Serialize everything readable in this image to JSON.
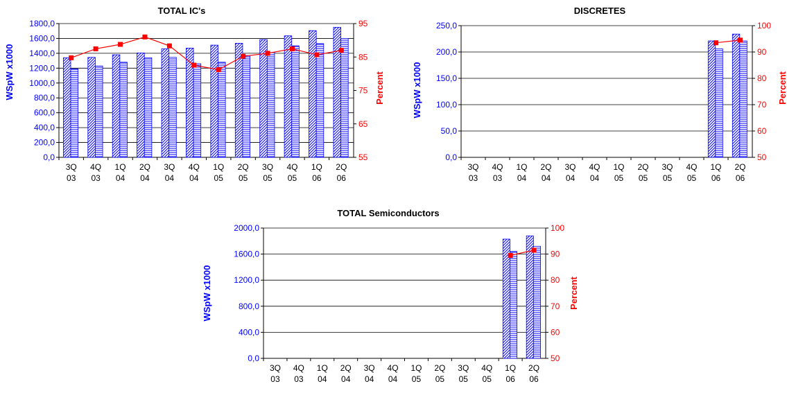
{
  "colors": {
    "bar_stroke": "#0000ff",
    "line": "#ff0000",
    "grid": "#000000"
  },
  "chart_data": [
    {
      "type": "bar",
      "title": "TOTAL IC's",
      "ylabel": "WSpW x1000",
      "y2label": "Percent",
      "categories": [
        [
          "3Q",
          "03"
        ],
        [
          "4Q",
          "03"
        ],
        [
          "1Q",
          "04"
        ],
        [
          "2Q",
          "04"
        ],
        [
          "3Q",
          "04"
        ],
        [
          "4Q",
          "04"
        ],
        [
          "1Q",
          "05"
        ],
        [
          "2Q",
          "05"
        ],
        [
          "3Q",
          "05"
        ],
        [
          "4Q",
          "05"
        ],
        [
          "1Q",
          "06"
        ],
        [
          "2Q",
          "06"
        ]
      ],
      "ylim": [
        0,
        1800
      ],
      "yticks": [
        "0,0",
        "200,0",
        "400,0",
        "600,0",
        "800,0",
        "1000,0",
        "1200,0",
        "1400,0",
        "1600,0",
        "1800,0"
      ],
      "y2lim": [
        55,
        100
      ],
      "y2ticks": [
        "55",
        "65",
        "75",
        "85",
        "95"
      ],
      "series": [
        {
          "values": [
            1340,
            1345,
            1380,
            1405,
            1460,
            1470,
            1510,
            1535,
            1585,
            1635,
            1705,
            1750
          ],
          "pattern": "diagonal"
        },
        {
          "values": [
            1190,
            1230,
            1280,
            1340,
            1345,
            1260,
            1280,
            1370,
            1410,
            1500,
            1530,
            1600
          ],
          "pattern": "horizontal"
        },
        {
          "values": [
            88.5,
            91.5,
            93,
            95.5,
            92.5,
            86,
            84.5,
            89,
            90,
            91.5,
            89.5,
            91
          ],
          "axis": "right",
          "type": "line"
        }
      ]
    },
    {
      "type": "bar",
      "title": "DISCRETES",
      "ylabel": "WSpW x1000",
      "y2label": "Percent",
      "categories": [
        [
          "3Q",
          "03"
        ],
        [
          "4Q",
          "03"
        ],
        [
          "1Q",
          "04"
        ],
        [
          "2Q",
          "04"
        ],
        [
          "3Q",
          "04"
        ],
        [
          "4Q",
          "04"
        ],
        [
          "1Q",
          "05"
        ],
        [
          "2Q",
          "05"
        ],
        [
          "3Q",
          "05"
        ],
        [
          "4Q",
          "05"
        ],
        [
          "1Q",
          "06"
        ],
        [
          "2Q",
          "06"
        ]
      ],
      "ylim": [
        0,
        250
      ],
      "yticks": [
        "0,0",
        "50,0",
        "100,0",
        "150,0",
        "200,0",
        "250,0"
      ],
      "y2lim": [
        50,
        100
      ],
      "y2ticks": [
        "50",
        "60",
        "70",
        "80",
        "90",
        "100"
      ],
      "series": [
        {
          "values": [
            null,
            null,
            null,
            null,
            null,
            null,
            null,
            null,
            null,
            null,
            221,
            234
          ],
          "pattern": "diagonal"
        },
        {
          "values": [
            null,
            null,
            null,
            null,
            null,
            null,
            null,
            null,
            null,
            null,
            206,
            221
          ],
          "pattern": "horizontal"
        },
        {
          "values": [
            null,
            null,
            null,
            null,
            null,
            null,
            null,
            null,
            null,
            null,
            93.5,
            94.5
          ],
          "axis": "right",
          "type": "line"
        }
      ]
    },
    {
      "type": "bar",
      "title": "TOTAL Semiconductors",
      "ylabel": "WSpW x1000",
      "y2label": "Percent",
      "categories": [
        [
          "3Q",
          "03"
        ],
        [
          "4Q",
          "03"
        ],
        [
          "1Q",
          "04"
        ],
        [
          "2Q",
          "04"
        ],
        [
          "3Q",
          "04"
        ],
        [
          "4Q",
          "04"
        ],
        [
          "1Q",
          "05"
        ],
        [
          "2Q",
          "05"
        ],
        [
          "3Q",
          "05"
        ],
        [
          "4Q",
          "05"
        ],
        [
          "1Q",
          "06"
        ],
        [
          "2Q",
          "06"
        ]
      ],
      "ylim": [
        0,
        2000
      ],
      "yticks": [
        "0,0",
        "400,0",
        "800,0",
        "1200,0",
        "1600,0",
        "2000,0"
      ],
      "y2lim": [
        50,
        100
      ],
      "y2ticks": [
        "50",
        "60",
        "70",
        "80",
        "90",
        "100"
      ],
      "series": [
        {
          "values": [
            null,
            null,
            null,
            null,
            null,
            null,
            null,
            null,
            null,
            null,
            1830,
            1880
          ],
          "pattern": "diagonal"
        },
        {
          "values": [
            null,
            null,
            null,
            null,
            null,
            null,
            null,
            null,
            null,
            null,
            1640,
            1720
          ],
          "pattern": "horizontal"
        },
        {
          "values": [
            null,
            null,
            null,
            null,
            null,
            null,
            null,
            null,
            null,
            null,
            89.5,
            91.5
          ],
          "axis": "right",
          "type": "line"
        }
      ]
    }
  ]
}
